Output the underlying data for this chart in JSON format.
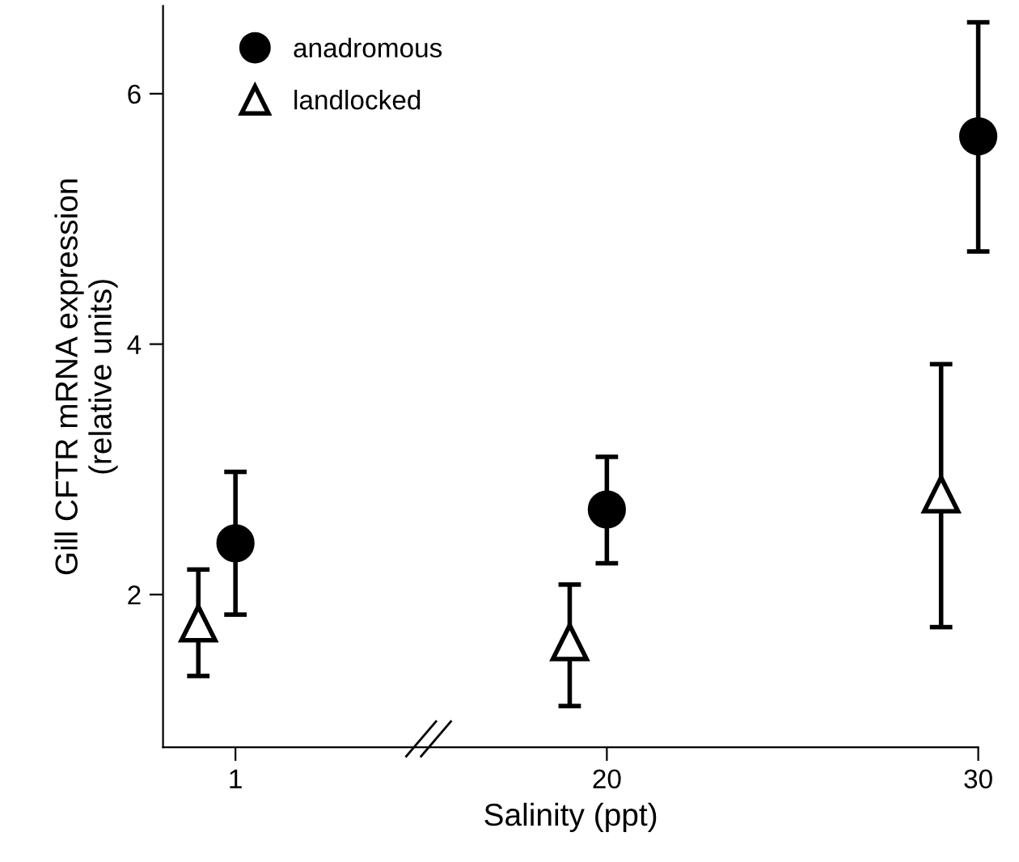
{
  "chart_data": {
    "type": "scatter",
    "xlabel": "Salinity (ppt)",
    "ylabel": "Gill CFTR mRNA expression\n(relative units)",
    "categories": [
      "1",
      "20",
      "30"
    ],
    "ylim": [
      0.78,
      6.7
    ],
    "yticks": [
      2,
      4,
      6
    ],
    "legend": "top left",
    "grid": false,
    "series": [
      {
        "name": "anadromous",
        "color": "#000000",
        "marker": "circle",
        "values": [
          2.41,
          2.68,
          5.66
        ],
        "errors": [
          [
            1.84,
            2.98
          ],
          [
            2.25,
            3.1
          ],
          [
            4.74,
            6.57
          ]
        ]
      },
      {
        "name": "landlocked",
        "color": "#000000",
        "marker": "triangle",
        "values": [
          1.77,
          1.62,
          2.8
        ],
        "errors": [
          [
            1.35,
            2.2
          ],
          [
            1.11,
            2.08
          ],
          [
            1.74,
            3.84
          ]
        ]
      }
    ]
  }
}
